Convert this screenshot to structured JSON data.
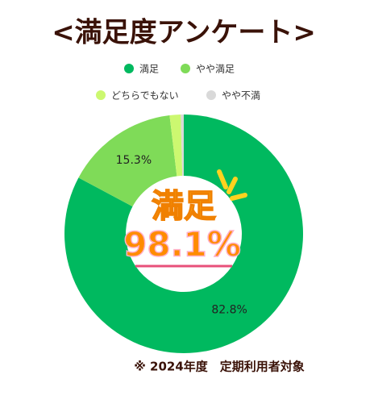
{
  "chart_data": {
    "type": "donut",
    "title": "<満足度アンケート>",
    "categories": [
      "満足",
      "やや満足",
      "どちらでもない",
      "やや不満"
    ],
    "values": [
      82.8,
      15.3,
      1.5,
      0.4
    ],
    "value_labels": [
      "82.8%",
      "15.3%",
      null,
      null
    ],
    "colors": [
      "#00b95f",
      "#7fdb58",
      "#ccf870",
      "#d9d9d9"
    ],
    "center_label": "満足",
    "center_value": "98.1%",
    "footnote": "※  2024年度　定期利用者対象"
  }
}
